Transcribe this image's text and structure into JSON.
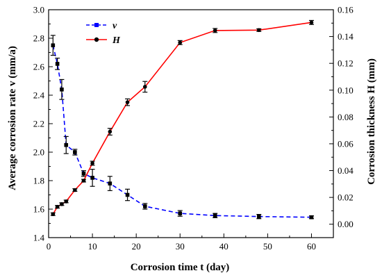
{
  "chart_data": {
    "type": "line",
    "xlabel": "Corrosion time t (day)",
    "ylabel_left": "Average corrosion rate v (mm/a)",
    "ylabel_right": "Corrosion thickness H (mm)",
    "xlim": [
      0,
      65
    ],
    "ylim_left": [
      1.4,
      3.0
    ],
    "ylim_right": [
      -0.01,
      0.16
    ],
    "xticks": [
      0,
      10,
      20,
      30,
      40,
      50,
      60
    ],
    "yticks_left": [
      1.4,
      1.6,
      1.8,
      2.0,
      2.2,
      2.4,
      2.6,
      2.8,
      3.0
    ],
    "yticks_right": [
      0.0,
      0.02,
      0.04,
      0.06,
      0.08,
      0.1,
      0.12,
      0.14,
      0.16
    ],
    "legend_position": "top-left",
    "series": [
      {
        "name": "v",
        "axis": "left",
        "color": "#0000ff",
        "line_style": "dashed",
        "marker": "square",
        "x": [
          1,
          2,
          3,
          4,
          6,
          8,
          10,
          14,
          18,
          22,
          30,
          38,
          48,
          60
        ],
        "values": [
          2.75,
          2.62,
          2.44,
          2.05,
          2.0,
          1.85,
          1.82,
          1.78,
          1.7,
          1.62,
          1.57,
          1.555,
          1.548,
          1.543
        ],
        "errors": [
          0.07,
          0.04,
          0.07,
          0.06,
          0.02,
          0.02,
          0.06,
          0.05,
          0.04,
          0.02,
          0.02,
          0.015,
          0.015,
          0.01
        ]
      },
      {
        "name": "H",
        "axis": "right",
        "color": "#ff0000",
        "line_style": "solid",
        "marker": "circle",
        "x": [
          1,
          2,
          3,
          4,
          6,
          8,
          10,
          14,
          18,
          22,
          30,
          38,
          48,
          60
        ],
        "values": [
          0.0075,
          0.013,
          0.015,
          0.017,
          0.0255,
          0.0325,
          0.0455,
          0.069,
          0.091,
          0.1025,
          0.1355,
          0.1445,
          0.1448,
          0.1505
        ],
        "errors": [
          0.001,
          0.001,
          0.001,
          0.001,
          0.001,
          0.001,
          0.0015,
          0.0025,
          0.0025,
          0.004,
          0.0015,
          0.0015,
          0.001,
          0.0015
        ]
      }
    ]
  }
}
